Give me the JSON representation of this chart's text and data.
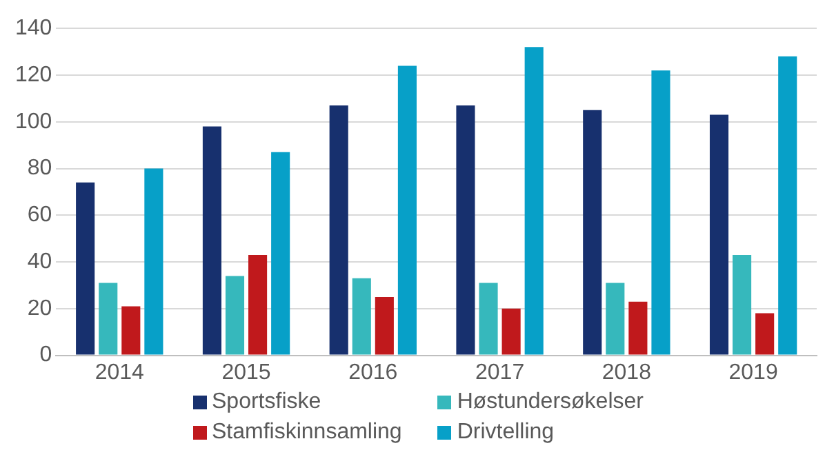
{
  "chart_data": {
    "type": "bar",
    "categories": [
      "2014",
      "2015",
      "2016",
      "2017",
      "2018",
      "2019"
    ],
    "series": [
      {
        "name": "Sportsfiske",
        "color": "#17306e",
        "values": [
          74,
          98,
          107,
          107,
          105,
          103
        ]
      },
      {
        "name": "Høstundersøkelser",
        "color": "#36b8bc",
        "values": [
          31,
          34,
          33,
          31,
          31,
          43
        ]
      },
      {
        "name": "Stamfiskinnsamling",
        "color": "#c0191c",
        "values": [
          21,
          43,
          25,
          20,
          23,
          18
        ]
      },
      {
        "name": "Drivtelling",
        "color": "#07a0c8",
        "values": [
          80,
          87,
          124,
          132,
          122,
          128
        ]
      }
    ],
    "ylim": [
      0,
      140
    ],
    "yticks": [
      0,
      20,
      40,
      60,
      80,
      100,
      120,
      140
    ],
    "grid": "y",
    "legend": "bottom"
  }
}
